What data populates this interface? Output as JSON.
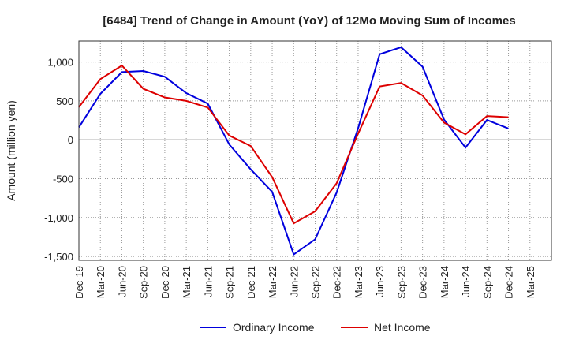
{
  "chart_data": {
    "type": "line",
    "title": "[6484]  Trend of Change in Amount (YoY) of 12Mo Moving Sum of Incomes",
    "xlabel": "",
    "ylabel": "Amount (million yen)",
    "ylim": [
      -1550,
      1270
    ],
    "yticks": [
      1000,
      500,
      0,
      -500,
      -1000,
      -1500
    ],
    "ytick_labels": [
      "1,000",
      "500",
      "0",
      "-500",
      "-1,000",
      "-1,500"
    ],
    "categories": [
      "Dec-19",
      "Mar-20",
      "Jun-20",
      "Sep-20",
      "Dec-20",
      "Mar-21",
      "Jun-21",
      "Sep-21",
      "Dec-21",
      "Mar-22",
      "Jun-22",
      "Sep-22",
      "Dec-22",
      "Mar-23",
      "Jun-23",
      "Sep-23",
      "Dec-23",
      "Mar-24",
      "Jun-24",
      "Sep-24",
      "Dec-24",
      "Mar-25"
    ],
    "grid": true,
    "legend_position": "bottom-center",
    "series": [
      {
        "name": "Ordinary Income",
        "color": "#0000dd",
        "values": [
          160,
          590,
          870,
          885,
          810,
          600,
          465,
          -60,
          -380,
          -670,
          -1475,
          -1280,
          -680,
          150,
          1100,
          1190,
          940,
          260,
          -100,
          255,
          145,
          null
        ]
      },
      {
        "name": "Net Income",
        "color": "#dd0000",
        "values": [
          420,
          780,
          955,
          655,
          545,
          500,
          415,
          55,
          -80,
          -480,
          -1075,
          -920,
          -560,
          80,
          685,
          730,
          570,
          220,
          70,
          305,
          290,
          null
        ]
      }
    ]
  }
}
